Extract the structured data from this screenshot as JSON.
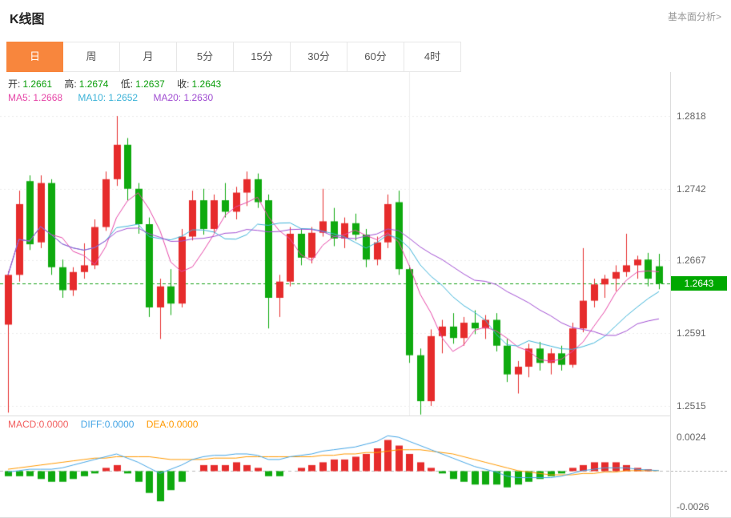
{
  "page": {
    "title": "K线图",
    "link": "基本面分析>"
  },
  "tabs": [
    {
      "label": "日",
      "active": true
    },
    {
      "label": "周",
      "active": false
    },
    {
      "label": "月",
      "active": false
    },
    {
      "label": "5分",
      "active": false
    },
    {
      "label": "15分",
      "active": false
    },
    {
      "label": "30分",
      "active": false
    },
    {
      "label": "60分",
      "active": false
    },
    {
      "label": "4时",
      "active": false
    }
  ],
  "legend": {
    "ohlc": [
      {
        "label": "开:",
        "value": "1.2661"
      },
      {
        "label": "高:",
        "value": "1.2674"
      },
      {
        "label": "低:",
        "value": "1.2637"
      },
      {
        "label": "收:",
        "value": "1.2643"
      }
    ],
    "ma": [
      {
        "text": "MA5: 1.2668"
      },
      {
        "text": "MA10: 1.2652"
      },
      {
        "text": "MA20: 1.2630"
      }
    ],
    "macd": [
      {
        "text": "MACD:0.0000"
      },
      {
        "text": "DIFF:0.0000"
      },
      {
        "text": "DEA:0.0000"
      }
    ]
  },
  "chart_data": [
    {
      "type": "candlestick",
      "period": "日",
      "legend_position": "top-left",
      "y_axis_labels": [
        1.2818,
        1.2742,
        1.2667,
        1.2591,
        1.2515
      ],
      "ylim": [
        1.2505,
        1.2864
      ],
      "current_price": 1.2643,
      "current_price_label": "1.2643",
      "grid": "dashed-horizontal",
      "v_gridline_candle_indexes": [
        37
      ],
      "colors": {
        "up": "#e62c2c",
        "down": "#0faa0f",
        "current_price": "#18a018",
        "badge_bg": "#00a800",
        "active_tab": "#f8863d"
      },
      "ma": [
        {
          "name": "MA5",
          "period": 5,
          "last": 1.2668,
          "color": "#e648a8"
        },
        {
          "name": "MA10",
          "period": 10,
          "last": 1.2652,
          "color": "#3eb3d8"
        },
        {
          "name": "MA20",
          "period": 20,
          "last": 1.263,
          "color": "#a14ed2"
        }
      ],
      "candles": [
        [
          1.26,
          1.2656,
          1.2508,
          1.2652
        ],
        [
          1.2652,
          1.274,
          1.2645,
          1.2726
        ],
        [
          1.275,
          1.2756,
          1.2678,
          1.2684
        ],
        [
          1.2686,
          1.2756,
          1.268,
          1.2748
        ],
        [
          1.2748,
          1.2752,
          1.2652,
          1.266
        ],
        [
          1.266,
          1.2668,
          1.2628,
          1.2636
        ],
        [
          1.2636,
          1.266,
          1.263,
          1.2655
        ],
        [
          1.2655,
          1.2685,
          1.2648,
          1.2662
        ],
        [
          1.2662,
          1.271,
          1.2658,
          1.2702
        ],
        [
          1.2702,
          1.276,
          1.2698,
          1.2752
        ],
        [
          1.2752,
          1.2818,
          1.2745,
          1.2788
        ],
        [
          1.2788,
          1.2795,
          1.273,
          1.2742
        ],
        [
          1.2742,
          1.2748,
          1.2695,
          1.2705
        ],
        [
          1.2705,
          1.2712,
          1.2608,
          1.2618
        ],
        [
          1.2618,
          1.2648,
          1.2585,
          1.264
        ],
        [
          1.264,
          1.2658,
          1.261,
          1.2622
        ],
        [
          1.2622,
          1.27,
          1.2618,
          1.2692
        ],
        [
          1.2692,
          1.274,
          1.2688,
          1.273
        ],
        [
          1.273,
          1.2742,
          1.2694,
          1.27
        ],
        [
          1.27,
          1.2736,
          1.2696,
          1.273
        ],
        [
          1.273,
          1.2748,
          1.2712,
          1.2718
        ],
        [
          1.2718,
          1.2744,
          1.271,
          1.2738
        ],
        [
          1.2738,
          1.276,
          1.2724,
          1.2752
        ],
        [
          1.2752,
          1.2758,
          1.2722,
          1.2728
        ],
        [
          1.273,
          1.2736,
          1.2596,
          1.2628
        ],
        [
          1.2628,
          1.2652,
          1.2608,
          1.2645
        ],
        [
          1.2645,
          1.2702,
          1.264,
          1.2695
        ],
        [
          1.2695,
          1.27,
          1.2662,
          1.267
        ],
        [
          1.267,
          1.2702,
          1.2664,
          1.2696
        ],
        [
          1.2696,
          1.2742,
          1.2692,
          1.2708
        ],
        [
          1.2708,
          1.2722,
          1.2682,
          1.269
        ],
        [
          1.269,
          1.2712,
          1.268,
          1.2706
        ],
        [
          1.2706,
          1.2716,
          1.2688,
          1.2694
        ],
        [
          1.2694,
          1.27,
          1.266,
          1.2668
        ],
        [
          1.2668,
          1.2692,
          1.2662,
          1.2686
        ],
        [
          1.2686,
          1.2736,
          1.268,
          1.2726
        ],
        [
          1.2728,
          1.274,
          1.2652,
          1.2658
        ],
        [
          1.2658,
          1.2662,
          1.256,
          1.2568
        ],
        [
          1.2568,
          1.2575,
          1.2506,
          1.252
        ],
        [
          1.252,
          1.2595,
          1.2515,
          1.2588
        ],
        [
          1.2588,
          1.2605,
          1.257,
          1.2598
        ],
        [
          1.2598,
          1.2612,
          1.258,
          1.2586
        ],
        [
          1.2586,
          1.2608,
          1.2578,
          1.2602
        ],
        [
          1.2602,
          1.2615,
          1.259,
          1.2596
        ],
        [
          1.2596,
          1.261,
          1.2585,
          1.2605
        ],
        [
          1.2605,
          1.2612,
          1.2572,
          1.2578
        ],
        [
          1.2578,
          1.2585,
          1.254,
          1.2548
        ],
        [
          1.2548,
          1.2562,
          1.2528,
          1.2556
        ],
        [
          1.2556,
          1.258,
          1.2545,
          1.2575
        ],
        [
          1.2575,
          1.2582,
          1.2552,
          1.256
        ],
        [
          1.256,
          1.2575,
          1.2548,
          1.257
        ],
        [
          1.257,
          1.2578,
          1.2552,
          1.2558
        ],
        [
          1.2558,
          1.2602,
          1.2555,
          1.2596
        ],
        [
          1.2596,
          1.268,
          1.2592,
          1.2625
        ],
        [
          1.2625,
          1.2648,
          1.2618,
          1.2642
        ],
        [
          1.2642,
          1.2652,
          1.2628,
          1.2648
        ],
        [
          1.2648,
          1.2662,
          1.2635,
          1.2655
        ],
        [
          1.2655,
          1.2695,
          1.265,
          1.2662
        ],
        [
          1.2662,
          1.2672,
          1.2648,
          1.2668
        ],
        [
          1.2668,
          1.2675,
          1.264,
          1.2648
        ],
        [
          1.2661,
          1.2674,
          1.2637,
          1.2643
        ]
      ]
    },
    {
      "type": "bar",
      "name": "MACD(12,26,9)",
      "y_axis_labels": [
        0.0024,
        -0.0026
      ],
      "ylim": [
        -0.0034,
        0.0039
      ],
      "zero_line": "dashed",
      "colors": {
        "pos": "#e62c2c",
        "neg": "#0faa0f",
        "diff": "#45a5e5",
        "dea": "#ff9900"
      },
      "diff": [
        -0.0001,
        0,
        0.0001,
        0.0001,
        0.0001,
        0.0002,
        0.0004,
        0.0006,
        0.0008,
        0.001,
        0.0012,
        0.0009,
        0.0006,
        0.0002,
        -0.0002,
        0.0001,
        0.0004,
        0.0008,
        0.001,
        0.0011,
        0.0011,
        0.0012,
        0.0012,
        0.0011,
        0.0008,
        0.0008,
        0.001,
        0.0011,
        0.0012,
        0.0014,
        0.0015,
        0.0016,
        0.0017,
        0.0019,
        0.0021,
        0.0025,
        0.0024,
        0.0021,
        0.0018,
        0.0015,
        0.0012,
        0.0009,
        0.0006,
        0.0003,
        0.0001,
        -0.0001,
        -0.0004,
        -0.0005,
        -0.0005,
        -0.0005,
        -0.0005,
        -0.0004,
        -0.0002,
        0,
        0.0001,
        0.0002,
        0.0002,
        0.0002,
        0.0001,
        5e-05,
        0
      ],
      "dea": [
        0.0001,
        0.0002,
        0.0003,
        0.0004,
        0.0005,
        0.0006,
        0.0007,
        0.0008,
        0.0009,
        0.0009,
        0.001,
        0.001,
        0.001,
        0.001,
        0.0009,
        0.0008,
        0.0008,
        0.0008,
        0.0008,
        0.0009,
        0.0009,
        0.0009,
        0.001,
        0.001,
        0.001,
        0.001,
        0.001,
        0.001,
        0.001,
        0.0011,
        0.0011,
        0.0012,
        0.0012,
        0.0013,
        0.0013,
        0.0014,
        0.0015,
        0.0015,
        0.0015,
        0.0014,
        0.0013,
        0.0012,
        0.001,
        0.0008,
        0.0006,
        0.0004,
        0.0002,
        0,
        -0.0001,
        -0.0002,
        -0.0003,
        -0.0003,
        -0.0003,
        -0.0002,
        -0.0002,
        -0.0001,
        -0.0001,
        0,
        0,
        0,
        0
      ],
      "hist": [
        -0.0004,
        -0.0004,
        -0.0004,
        -0.0006,
        -0.0008,
        -0.0008,
        -0.0006,
        -0.0004,
        -0.0002,
        0.0002,
        0.0004,
        -0.0002,
        -0.0008,
        -0.0016,
        -0.0022,
        -0.0014,
        -0.0008,
        0,
        0.0004,
        0.0004,
        0.0004,
        0.0006,
        0.0004,
        0.0002,
        -0.0004,
        -0.0004,
        0,
        0.0002,
        0.0004,
        0.0006,
        0.0008,
        0.0008,
        0.001,
        0.0012,
        0.0016,
        0.0022,
        0.0018,
        0.0012,
        0.0006,
        0.0002,
        -0.0002,
        -0.0006,
        -0.0008,
        -0.001,
        -0.001,
        -0.001,
        -0.0012,
        -0.001,
        -0.0008,
        -0.0006,
        -0.0004,
        -0.0002,
        0.0002,
        0.0004,
        0.0006,
        0.0006,
        0.0006,
        0.0004,
        0.0002,
        0.0001,
        0
      ]
    }
  ]
}
